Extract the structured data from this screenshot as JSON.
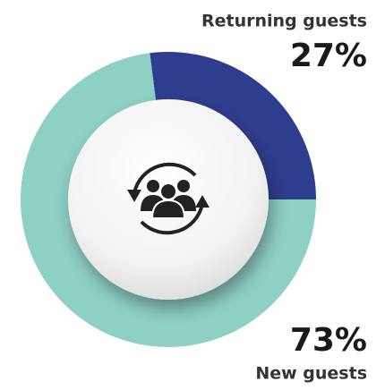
{
  "chart_data": {
    "type": "donut",
    "categories": [
      "Returning guests",
      "New guests"
    ],
    "values": [
      27,
      73
    ],
    "value_labels": [
      "27%",
      "73%"
    ],
    "colors": [
      "#2f3d8f",
      "#8fd0c5"
    ]
  }
}
